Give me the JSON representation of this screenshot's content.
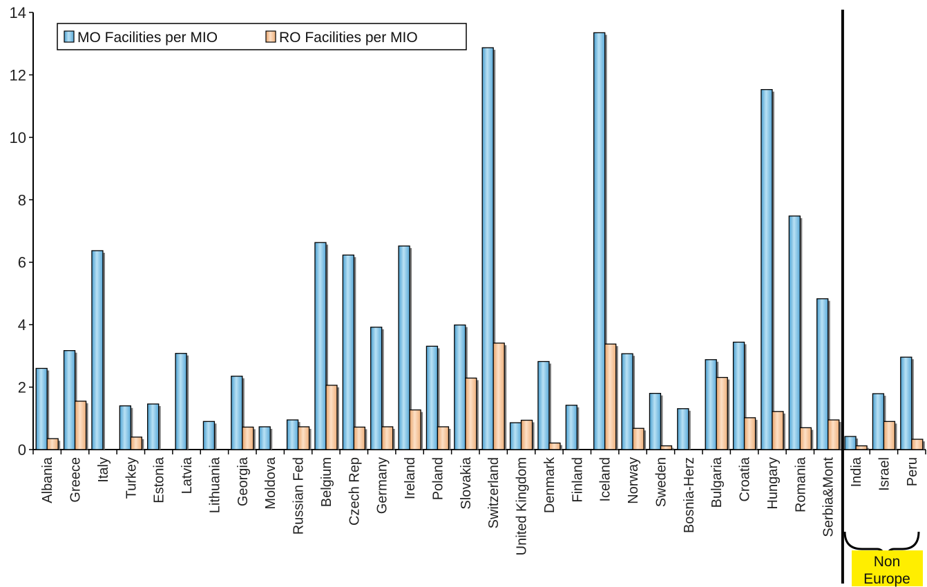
{
  "chart_data": {
    "type": "bar",
    "title": "",
    "xlabel": "",
    "ylabel": "",
    "ylim": [
      0,
      14
    ],
    "yticks": [
      0,
      2,
      4,
      6,
      8,
      10,
      12,
      14
    ],
    "grid": false,
    "legend_position": "top-left",
    "categories": [
      "Albania",
      "Greece",
      "Italy",
      "Turkey",
      "Estonia",
      "Latvia",
      "Lithuania",
      "Georgia",
      "Moldova",
      "Russian Fed",
      "Belgium",
      "Czech Rep",
      "Germany",
      "Ireland",
      "Poland",
      "Slovakia",
      "Switzerland",
      "United Kingdom",
      "Denmark",
      "Finland",
      "Iceland",
      "Norway",
      "Sweden",
      "Bosnia-Herz",
      "Bulgaria",
      "Croatia",
      "Hungary",
      "Romania",
      "Serbia&Mont",
      "India",
      "Israel",
      "Peru"
    ],
    "series": [
      {
        "name": "MO Facilities per MIO",
        "color": "#7fc4e6",
        "values": [
          2.6,
          3.17,
          6.37,
          1.4,
          1.46,
          3.08,
          0.9,
          2.35,
          0.73,
          0.95,
          6.63,
          6.23,
          3.92,
          6.52,
          3.31,
          3.99,
          12.87,
          0.86,
          2.82,
          1.42,
          13.35,
          3.07,
          1.8,
          1.31,
          2.88,
          3.44,
          11.53,
          7.48,
          4.83,
          0.42,
          1.79,
          2.96
        ]
      },
      {
        "name": "RO Facilities per MIO",
        "color": "#f5c194",
        "values": [
          0.35,
          1.55,
          0,
          0.4,
          0,
          0,
          0,
          0.72,
          0,
          0.73,
          2.06,
          0.72,
          0.73,
          1.27,
          0.73,
          2.29,
          3.41,
          0.94,
          0.21,
          0,
          3.38,
          0.68,
          0.12,
          0,
          2.31,
          1.02,
          1.22,
          0.7,
          0.95,
          0.12,
          0.9,
          0.33
        ]
      }
    ],
    "divider_after": "Serbia&Mont",
    "bracket_group": [
      "India",
      "Israel",
      "Peru"
    ],
    "annotation": {
      "text_lines": [
        "Non",
        "Europe"
      ],
      "background": "#ffee00"
    }
  }
}
